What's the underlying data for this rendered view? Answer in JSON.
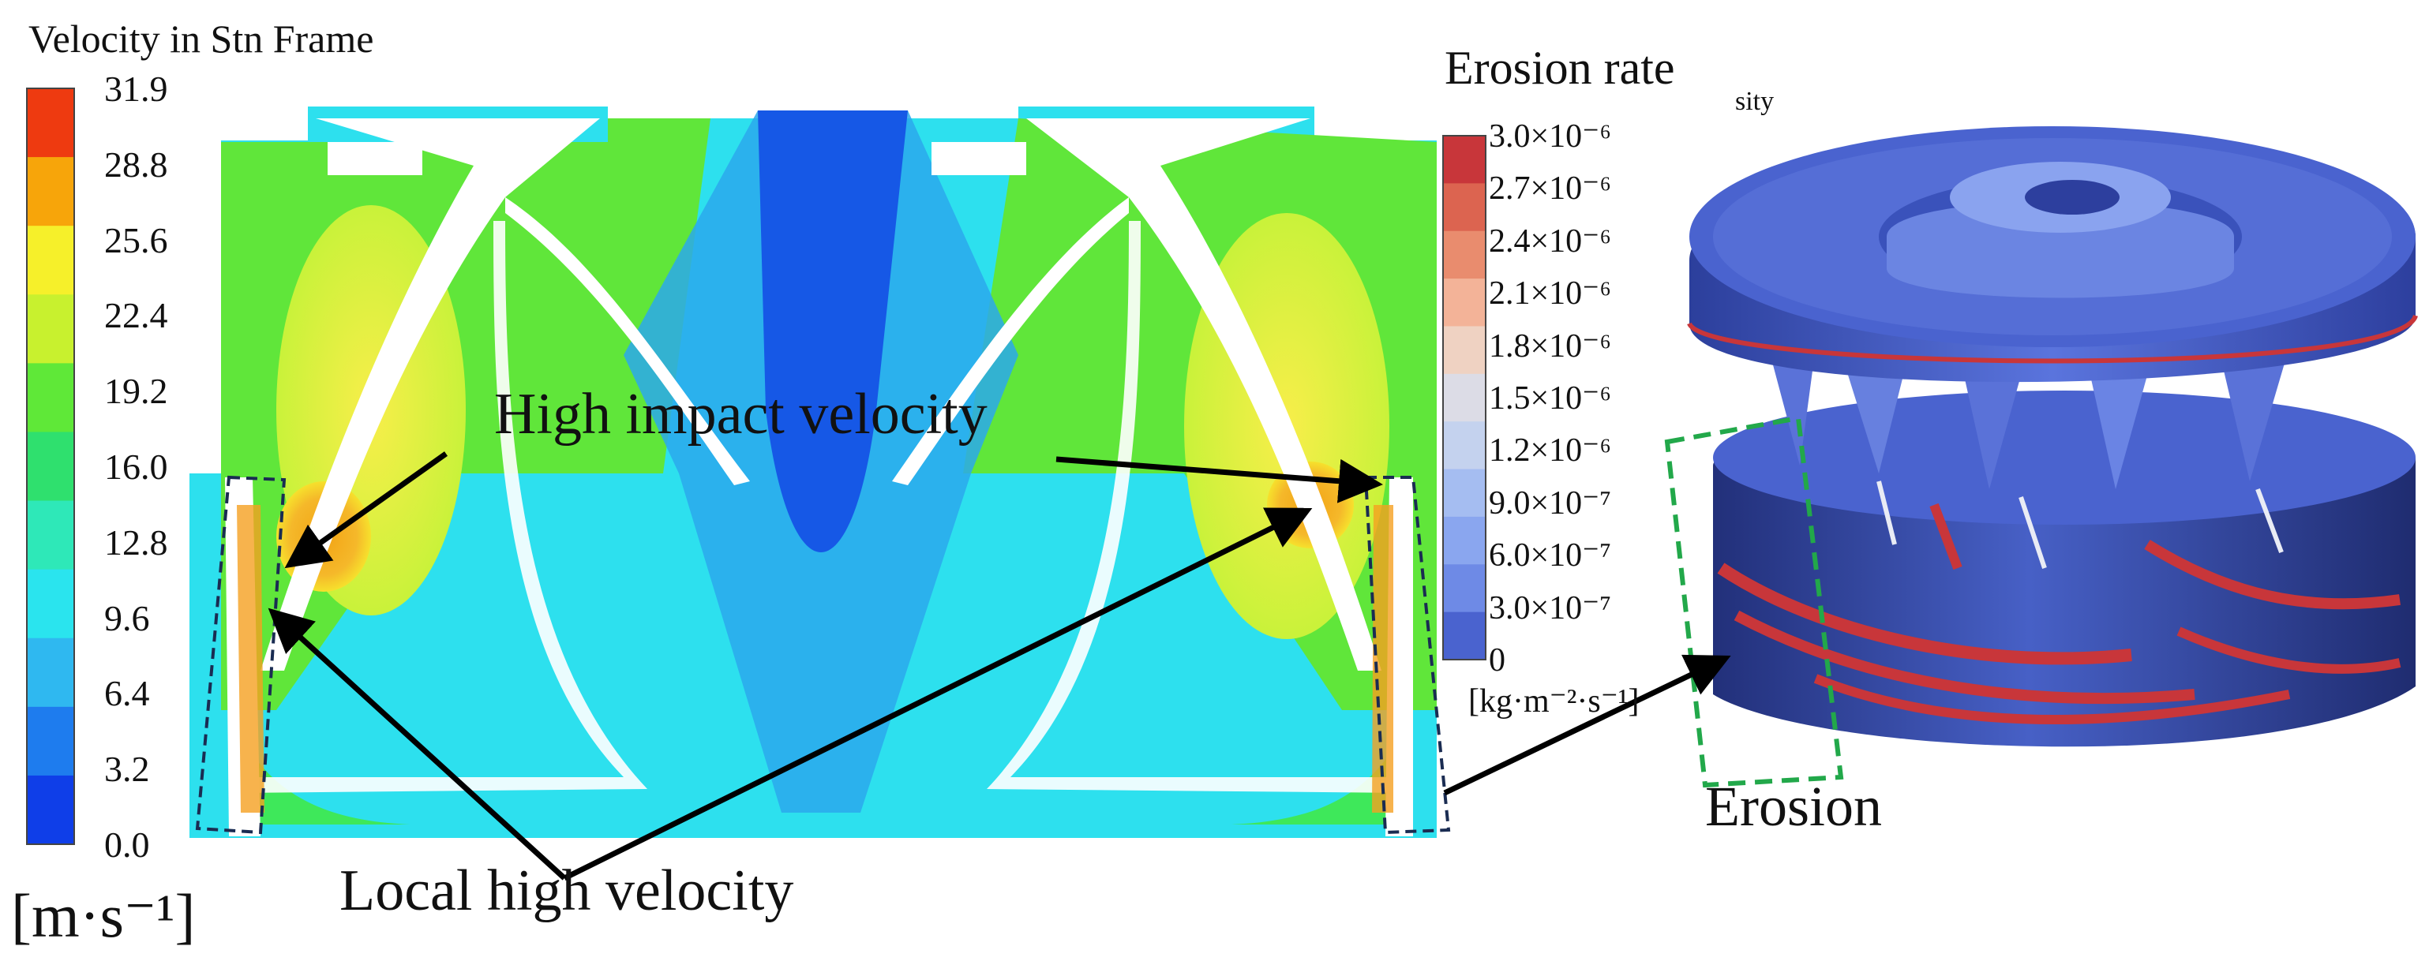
{
  "velocity_panel": {
    "title": "Velocity in Stn Frame",
    "unit": "[m·s⁻¹]",
    "colorbar_ticks": [
      "31.9",
      "28.8",
      "25.6",
      "22.4",
      "19.2",
      "16.0",
      "12.8",
      "9.6",
      "6.4",
      "3.2",
      "0.0"
    ],
    "colorbar_colors": [
      "#ee3a10",
      "#f7a50a",
      "#f6f02a",
      "#c8f12e",
      "#5fe838",
      "#2fe06e",
      "#2ee8b8",
      "#2ae4ee",
      "#2fb8f0",
      "#1e7cee",
      "#0f3ee8"
    ]
  },
  "erosion_panel": {
    "title": "Erosion rate",
    "title_suffix": "sity",
    "unit": "[kg·m⁻²·s⁻¹]",
    "colorbar_ticks": [
      "3.0×10⁻⁶",
      "2.7×10⁻⁶",
      "2.4×10⁻⁶",
      "2.1×10⁻⁶",
      "1.8×10⁻⁶",
      "1.5×10⁻⁶",
      "1.2×10⁻⁶",
      "9.0×10⁻⁷",
      "6.0×10⁻⁷",
      "3.0×10⁻⁷",
      "0"
    ],
    "colorbar_colors": [
      "#c8363a",
      "#dc6450",
      "#e98c6e",
      "#f3b398",
      "#efd2c2",
      "#dcdce6",
      "#c4d2ee",
      "#a5bdf1",
      "#8aa6ef",
      "#6e8ae6",
      "#4a63cf"
    ]
  },
  "annotations": {
    "high_impact": "High impact velocity",
    "local_high": "Local high velocity",
    "erosion": "Erosion"
  }
}
